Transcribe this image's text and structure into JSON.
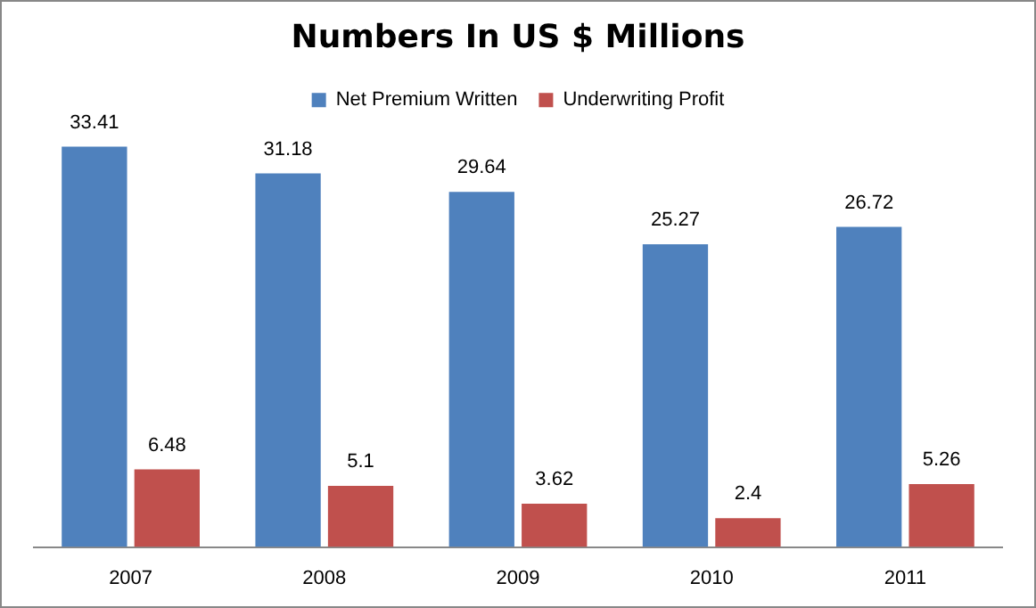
{
  "chart_data": {
    "type": "bar",
    "title": "Numbers In US $ Millions",
    "categories": [
      "2007",
      "2008",
      "2009",
      "2010",
      "2011"
    ],
    "series": [
      {
        "name": "Net Premium Written",
        "color": "#4f81bd",
        "values": [
          33.41,
          31.18,
          29.64,
          25.27,
          26.72
        ]
      },
      {
        "name": "Underwriting Profit",
        "color": "#c0504d",
        "values": [
          6.48,
          5.1,
          3.62,
          2.4,
          5.26
        ]
      }
    ],
    "data_labels": true,
    "legend": "top",
    "grid": false
  }
}
